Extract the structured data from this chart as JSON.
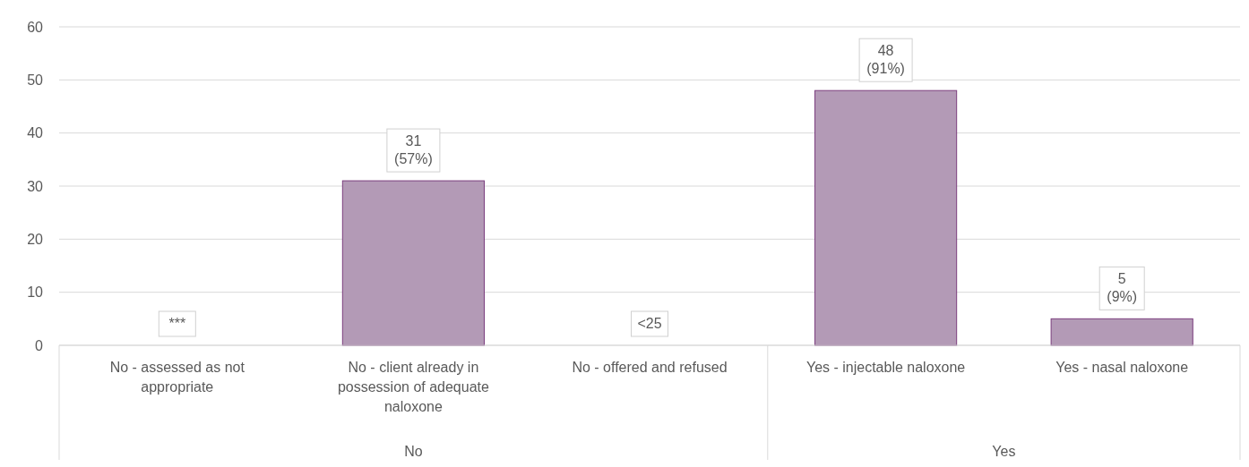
{
  "chart_data": {
    "type": "bar",
    "categories": [
      "No - assessed as not appropriate",
      "No - client already in possession of adequate naloxone",
      "No - offered and refused",
      "Yes - injectable naloxone",
      "Yes - nasal naloxone"
    ],
    "values": [
      null,
      31,
      null,
      48,
      5
    ],
    "value_labels": [
      "***",
      "31\n(57%)",
      "<25",
      "48\n(91%)",
      "5\n(9%)"
    ],
    "color": "#b39ab6",
    "ylim": [
      0,
      60
    ],
    "yticks": [
      0,
      10,
      20,
      30,
      40,
      50,
      60
    ],
    "grid": "y",
    "annotations": [
      "No",
      "Yes"
    ]
  }
}
